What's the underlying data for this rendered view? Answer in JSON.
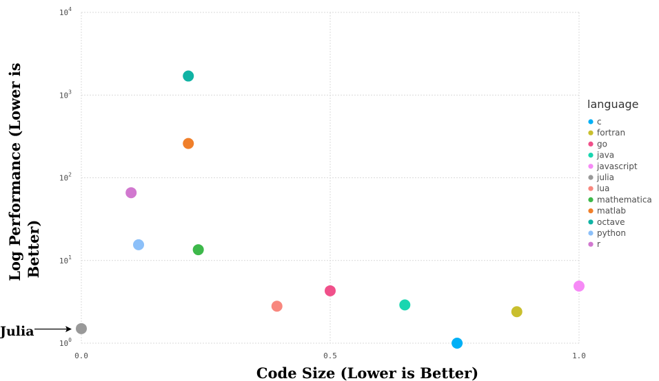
{
  "chart_data": {
    "type": "scatter",
    "xlabel": "Code Size (Lower is Better)",
    "ylabel_lines": [
      "Log Performance  (Lower is",
      "Better)"
    ],
    "x_ticks": [
      "0.0",
      "0.5",
      "1.0"
    ],
    "y_ticks": [
      {
        "base": "10",
        "exp": "0",
        "value": 1
      },
      {
        "base": "10",
        "exp": "1",
        "value": 10
      },
      {
        "base": "10",
        "exp": "2",
        "value": 100
      },
      {
        "base": "10",
        "exp": "3",
        "value": 1000
      },
      {
        "base": "10",
        "exp": "4",
        "value": 10000
      }
    ],
    "xlim": [
      0,
      1
    ],
    "ylim": [
      1,
      10000
    ],
    "y_scale": "log",
    "grid": true,
    "legend": {
      "title": "language",
      "position": "right",
      "entries": [
        {
          "name": "c",
          "color": "#00B0F6"
        },
        {
          "name": "fortran",
          "color": "#C9BF2E"
        },
        {
          "name": "go",
          "color": "#F0508A"
        },
        {
          "name": "java",
          "color": "#19D6B0"
        },
        {
          "name": "javascript",
          "color": "#F68AF6"
        },
        {
          "name": "julia",
          "color": "#999999"
        },
        {
          "name": "lua",
          "color": "#F8877E"
        },
        {
          "name": "mathematica",
          "color": "#3DB84A"
        },
        {
          "name": "matlab",
          "color": "#F07F2A"
        },
        {
          "name": "octave",
          "color": "#10B3A4"
        },
        {
          "name": "python",
          "color": "#8CC0F9"
        },
        {
          "name": "r",
          "color": "#D178CF"
        }
      ]
    },
    "points": [
      {
        "language": "c",
        "x": 0.755,
        "y": 1.0
      },
      {
        "language": "fortran",
        "x": 0.875,
        "y": 2.4
      },
      {
        "language": "go",
        "x": 0.5,
        "y": 4.3
      },
      {
        "language": "java",
        "x": 0.65,
        "y": 2.9
      },
      {
        "language": "javascript",
        "x": 1.0,
        "y": 4.9
      },
      {
        "language": "julia",
        "x": 0.0,
        "y": 1.5
      },
      {
        "language": "lua",
        "x": 0.393,
        "y": 2.8
      },
      {
        "language": "mathematica",
        "x": 0.235,
        "y": 13.5
      },
      {
        "language": "matlab",
        "x": 0.215,
        "y": 260
      },
      {
        "language": "octave",
        "x": 0.215,
        "y": 1700
      },
      {
        "language": "python",
        "x": 0.115,
        "y": 15.5
      },
      {
        "language": "r",
        "x": 0.1,
        "y": 66
      }
    ],
    "annotations": [
      {
        "text": "Julia",
        "target": "julia"
      }
    ]
  }
}
